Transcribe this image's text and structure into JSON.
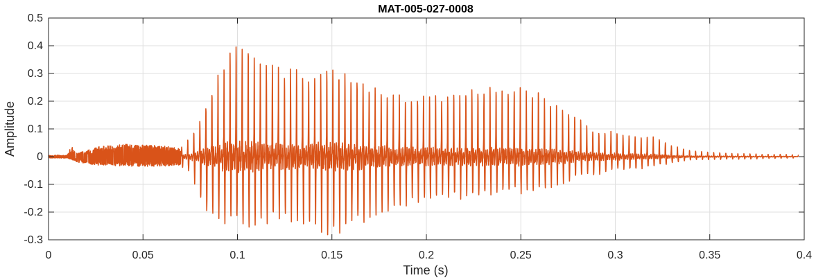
{
  "chart_data": {
    "type": "line",
    "title": "MAT-005-027-0008",
    "xlabel": "Time (s)",
    "ylabel": "Amplitude",
    "xlim": [
      0,
      0.4
    ],
    "ylim": [
      -0.3,
      0.5
    ],
    "grid": true,
    "legend": "none",
    "line_color": "#D95319",
    "x_ticks": [
      {
        "value": 0,
        "label": "0"
      },
      {
        "value": 0.05,
        "label": "0.05"
      },
      {
        "value": 0.1,
        "label": "0.1"
      },
      {
        "value": 0.15,
        "label": "0.15"
      },
      {
        "value": 0.2,
        "label": "0.2"
      },
      {
        "value": 0.25,
        "label": "0.25"
      },
      {
        "value": 0.3,
        "label": "0.3"
      },
      {
        "value": 0.35,
        "label": "0.35"
      },
      {
        "value": 0.4,
        "label": "0.4"
      }
    ],
    "y_ticks": [
      {
        "value": 0.5,
        "label": "0.5"
      },
      {
        "value": 0.4,
        "label": "0.4"
      },
      {
        "value": 0.3,
        "label": "0.3"
      },
      {
        "value": 0.2,
        "label": "0.2"
      },
      {
        "value": 0.1,
        "label": "0.1"
      },
      {
        "value": 0,
        "label": "0"
      },
      {
        "value": -0.1,
        "label": "-0.1"
      },
      {
        "value": -0.2,
        "label": "-0.2"
      },
      {
        "value": -0.3,
        "label": "-0.3"
      }
    ],
    "series": [
      {
        "envelope": {
          "t": [
            0,
            0.01,
            0.012,
            0.015,
            0.025,
            0.04,
            0.06,
            0.07,
            0.075,
            0.08,
            0.085,
            0.09,
            0.095,
            0.1,
            0.105,
            0.11,
            0.12,
            0.13,
            0.14,
            0.15,
            0.16,
            0.17,
            0.18,
            0.19,
            0.2,
            0.21,
            0.22,
            0.23,
            0.24,
            0.25,
            0.26,
            0.27,
            0.28,
            0.29,
            0.3,
            0.31,
            0.32,
            0.33,
            0.34,
            0.35,
            0.36,
            0.37,
            0.38,
            0.39,
            0.397
          ],
          "max": [
            0.005,
            0.005,
            0.04,
            0.012,
            0.035,
            0.045,
            0.04,
            0.03,
            0.07,
            0.12,
            0.2,
            0.3,
            0.36,
            0.38,
            0.4,
            0.34,
            0.31,
            0.3,
            0.28,
            0.31,
            0.28,
            0.25,
            0.21,
            0.21,
            0.21,
            0.21,
            0.23,
            0.24,
            0.24,
            0.24,
            0.22,
            0.17,
            0.14,
            0.08,
            0.09,
            0.07,
            0.07,
            0.04,
            0.02,
            0.015,
            0.012,
            0.01,
            0.008,
            0.008,
            0.005
          ],
          "min": [
            -0.005,
            -0.005,
            -0.01,
            -0.02,
            -0.03,
            -0.035,
            -0.035,
            -0.03,
            -0.05,
            -0.14,
            -0.19,
            -0.2,
            -0.22,
            -0.2,
            -0.22,
            -0.21,
            -0.2,
            -0.2,
            -0.22,
            -0.25,
            -0.22,
            -0.2,
            -0.17,
            -0.15,
            -0.13,
            -0.12,
            -0.13,
            -0.12,
            -0.11,
            -0.11,
            -0.1,
            -0.1,
            -0.06,
            -0.06,
            -0.04,
            -0.04,
            -0.03,
            -0.02,
            -0.01,
            -0.01,
            -0.008,
            -0.008,
            -0.006,
            -0.005,
            -0.004
          ]
        }
      }
    ]
  }
}
